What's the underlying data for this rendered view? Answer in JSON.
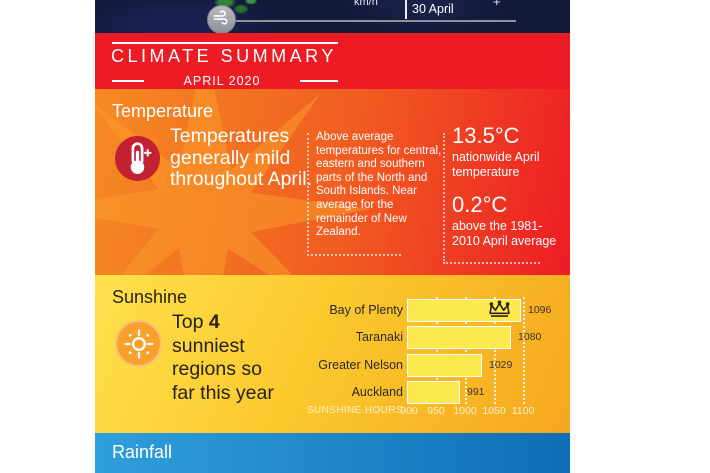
{
  "topbar": {
    "unit_partial": "km/h",
    "date_label": "30 April",
    "plus_partial": "+"
  },
  "header": {
    "title": "CLIMATE SUMMARY",
    "subtitle": "APRIL 2020"
  },
  "temperature": {
    "heading": "Temperature",
    "statement": "Temperatures generally mild throughout April.",
    "detail": "Above average temperatures for central, eastern and southern parts of the North and South Islands.  Near average for the remainder of New Zealand.",
    "stat1_value": "13.5°C",
    "stat1_label": "nationwide April temperature",
    "stat2_value": "0.2°C",
    "stat2_label": "above the 1981-2010 April average"
  },
  "sunshine": {
    "heading": "Sunshine",
    "statement_pre": "Top ",
    "statement_bold": "4",
    "statement_post": " sunniest regions so far this year"
  },
  "rainfall": {
    "heading": "Rainfall"
  },
  "chart_data": {
    "type": "bar",
    "orientation": "horizontal",
    "title": "Top 4 sunniest regions so far this year",
    "categories": [
      "Bay of Plenty",
      "Taranaki",
      "Greater Nelson",
      "Auckland"
    ],
    "values": [
      1096,
      1080,
      1029,
      991
    ],
    "xlabel": "SUNSHINE HOURS",
    "xticks": [
      900,
      950,
      1000,
      1050,
      1100
    ],
    "xlim": [
      900,
      1100
    ],
    "grid": "dotted white vertical lines at 950-1100",
    "annotations": [
      {
        "category": "Bay of Plenty",
        "icon": "crown"
      }
    ]
  },
  "colors": {
    "navy": "#131938",
    "red": "#ed1c24",
    "orange": "#f5861f",
    "yellow_light": "#ffe14e",
    "yellow_deep": "#f5a71f",
    "bar_fill": "#fce94f",
    "blue_light": "#2f9fdb",
    "blue_dark": "#0e6eb5",
    "icon_red": "#c22033",
    "icon_orange": "#f7a02b",
    "dark_text": "#272119",
    "cream_text": "#fbf0cf"
  }
}
